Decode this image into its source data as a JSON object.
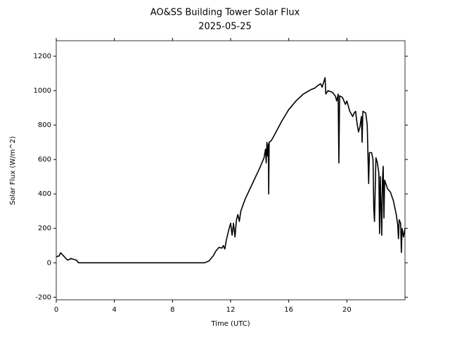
{
  "chart_data": {
    "type": "line",
    "title": "AO&SS Building Tower Solar Flux",
    "subtitle": "2025-05-25",
    "x_label": "Time (UTC)",
    "y_label": "Solar Flux (W/m^2)",
    "color": "#000000",
    "x": [
      0,
      0.2,
      0.3,
      0.5,
      0.7,
      0.8,
      1.0,
      1.2,
      1.4,
      1.5,
      1.6,
      10.2,
      10.5,
      10.8,
      11.0,
      11.2,
      11.4,
      11.5,
      11.6,
      11.7,
      11.9,
      12.0,
      12.1,
      12.2,
      12.3,
      12.4,
      12.5,
      12.6,
      12.7,
      13.0,
      13.5,
      14.0,
      14.3,
      14.4,
      14.45,
      14.5,
      14.55,
      14.6,
      14.62,
      14.65,
      14.8,
      15.0,
      15.5,
      16.0,
      16.5,
      17.0,
      17.5,
      17.8,
      18.0,
      18.2,
      18.3,
      18.5,
      18.55,
      18.7,
      19.0,
      19.2,
      19.3,
      19.4,
      19.45,
      19.5,
      19.7,
      19.9,
      20.0,
      20.2,
      20.4,
      20.5,
      20.6,
      20.7,
      20.8,
      20.9,
      21.0,
      21.05,
      21.1,
      21.3,
      21.4,
      21.5,
      21.55,
      21.7,
      21.8,
      21.85,
      21.9,
      22.0,
      22.1,
      22.2,
      22.25,
      22.3,
      22.4,
      22.45,
      22.5,
      22.55,
      22.6,
      22.8,
      23.0,
      23.2,
      23.4,
      23.5,
      23.55,
      23.6,
      23.7,
      23.75,
      23.8,
      23.9,
      24.0
    ],
    "values": [
      35,
      40,
      58,
      40,
      22,
      15,
      25,
      20,
      15,
      2,
      0,
      0,
      10,
      40,
      70,
      90,
      85,
      100,
      80,
      130,
      200,
      230,
      160,
      230,
      150,
      250,
      280,
      240,
      300,
      370,
      460,
      550,
      610,
      660,
      580,
      700,
      620,
      690,
      400,
      700,
      710,
      740,
      820,
      890,
      940,
      980,
      1005,
      1015,
      1030,
      1040,
      1020,
      1075,
      980,
      1000,
      990,
      970,
      940,
      980,
      580,
      970,
      960,
      920,
      940,
      880,
      850,
      870,
      880,
      810,
      760,
      790,
      850,
      700,
      880,
      870,
      800,
      460,
      640,
      640,
      600,
      320,
      240,
      610,
      580,
      520,
      170,
      500,
      160,
      480,
      560,
      260,
      480,
      430,
      410,
      360,
      280,
      220,
      140,
      250,
      230,
      60,
      200,
      150,
      200
    ],
    "xlim": [
      0,
      24
    ],
    "ylim": [
      -215,
      1290
    ],
    "xticks": [
      0,
      4,
      8,
      12,
      16,
      20
    ],
    "yticks": [
      -200,
      0,
      200,
      400,
      600,
      800,
      1000,
      1200
    ]
  }
}
